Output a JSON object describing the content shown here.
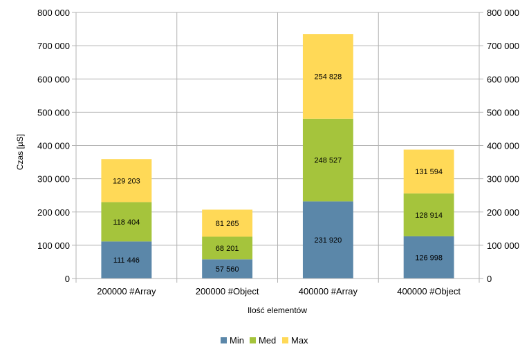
{
  "chart_data": {
    "type": "bar",
    "stacked": true,
    "categories": [
      "200000 #Array",
      "200000 #Object",
      "400000 #Array",
      "400000 #Object"
    ],
    "series": [
      {
        "name": "Min",
        "color": "#5b87a9",
        "values": [
          111446,
          57560,
          231920,
          126998
        ],
        "labels": [
          "111 446",
          "57 560",
          "231 920",
          "126 998"
        ]
      },
      {
        "name": "Med",
        "color": "#a5c43c",
        "values": [
          118404,
          68201,
          248527,
          128914
        ],
        "labels": [
          "118 404",
          "68 201",
          "248 527",
          "128 914"
        ]
      },
      {
        "name": "Max",
        "color": "#ffd957",
        "values": [
          129203,
          81265,
          254828,
          131594
        ],
        "labels": [
          "129 203",
          "81 265",
          "254 828",
          "131 594"
        ]
      }
    ],
    "xlabel": "Ilość elementów",
    "ylabel": "Czas [µS]",
    "ylim": [
      0,
      800000
    ],
    "y_ticks": [
      0,
      100000,
      200000,
      300000,
      400000,
      500000,
      600000,
      700000,
      800000
    ],
    "y_tick_labels": [
      "0",
      "100 000",
      "200 000",
      "300 000",
      "400 000",
      "500 000",
      "600 000",
      "700 000",
      "800 000"
    ],
    "secondary_y_axis": true,
    "grid": true,
    "legend_position": "bottom"
  }
}
